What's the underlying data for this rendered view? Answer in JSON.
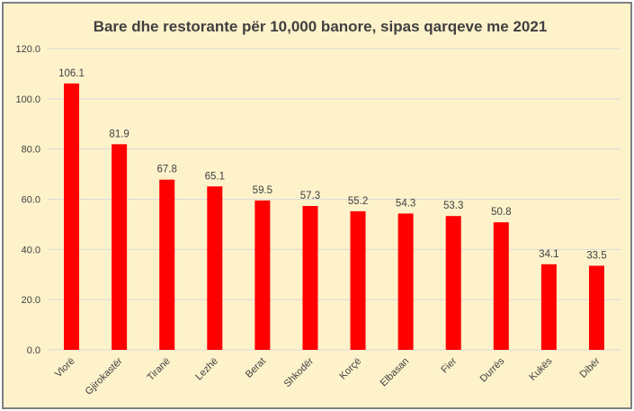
{
  "chart_data": {
    "type": "bar",
    "title": "Bare dhe restorante për 10,000 banore, sipas qarqeve me 2021",
    "xlabel": "",
    "ylabel": "",
    "categories": [
      "Vlorë",
      "Gjirokastër",
      "Tiranë",
      "Lezhë",
      "Berat",
      "Shkodër",
      "Korçë",
      "Elbasan",
      "Fier",
      "Durrës",
      "Kukës",
      "Dibër"
    ],
    "values": [
      106.1,
      81.9,
      67.8,
      65.1,
      59.5,
      57.3,
      55.2,
      54.3,
      53.3,
      50.8,
      34.1,
      33.5
    ],
    "data_labels": [
      "106.1",
      "81.9",
      "67.8",
      "65.1",
      "59.5",
      "57.3",
      "55.2",
      "54.3",
      "53.3",
      "50.8",
      "34.1",
      "33.5"
    ],
    "ylim": [
      0,
      120
    ],
    "yticks": [
      0,
      20,
      40,
      60,
      80,
      100,
      120
    ],
    "ytick_labels": [
      "0.0",
      "20.0",
      "40.0",
      "60.0",
      "80.0",
      "100.0",
      "120.0"
    ],
    "grid": true,
    "legend": "none",
    "colors": {
      "bar": "#ff0000",
      "background": "#fef2cb",
      "text": "#404040",
      "grid": "#d9d9d9",
      "border": "#7f7f7f"
    }
  }
}
